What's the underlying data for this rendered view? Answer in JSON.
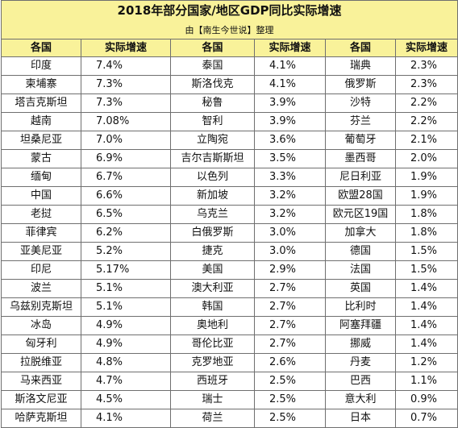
{
  "title": "2018年部分国家/地区GDP同比实际增速",
  "subtitle": "由【南生今世说】整理",
  "headers": [
    "各国",
    "实际增速",
    "各国",
    "实际增速",
    "各国",
    "实际增速"
  ],
  "colors": {
    "header_bg": "#f9f29a",
    "border": "#6f6f6f"
  },
  "rows": [
    [
      {
        "n": "印度",
        "v": "7.4%"
      },
      {
        "n": "泰国",
        "v": "4.1%"
      },
      {
        "n": "瑞典",
        "v": "2.3%"
      }
    ],
    [
      {
        "n": "柬埔寨",
        "v": "7.3%"
      },
      {
        "n": "斯洛伐克",
        "v": "4.1%"
      },
      {
        "n": "俄罗斯",
        "v": "2.3%"
      }
    ],
    [
      {
        "n": "塔吉克斯坦",
        "v": "7.3%"
      },
      {
        "n": "秘鲁",
        "v": "3.9%"
      },
      {
        "n": "沙特",
        "v": "2.2%"
      }
    ],
    [
      {
        "n": "越南",
        "v": "7.08%"
      },
      {
        "n": "智利",
        "v": "3.9%"
      },
      {
        "n": "芬兰",
        "v": "2.2%"
      }
    ],
    [
      {
        "n": "坦桑尼亚",
        "v": "7.0%"
      },
      {
        "n": "立陶宛",
        "v": "3.6%"
      },
      {
        "n": "葡萄牙",
        "v": "2.1%"
      }
    ],
    [
      {
        "n": "蒙古",
        "v": "6.9%"
      },
      {
        "n": "吉尔吉斯斯坦",
        "v": "3.5%"
      },
      {
        "n": "墨西哥",
        "v": "2.0%"
      }
    ],
    [
      {
        "n": "缅甸",
        "v": "6.7%"
      },
      {
        "n": "以色列",
        "v": "3.3%"
      },
      {
        "n": "尼日利亚",
        "v": "1.9%"
      }
    ],
    [
      {
        "n": "中国",
        "v": "6.6%"
      },
      {
        "n": "新加坡",
        "v": "3.2%"
      },
      {
        "n": "欧盟28国",
        "v": "1.9%"
      }
    ],
    [
      {
        "n": "老挝",
        "v": "6.5%"
      },
      {
        "n": "乌克兰",
        "v": "3.2%"
      },
      {
        "n": "欧元区19国",
        "v": "1.8%"
      }
    ],
    [
      {
        "n": "菲律宾",
        "v": "6.2%"
      },
      {
        "n": "白俄罗斯",
        "v": "3.0%"
      },
      {
        "n": "加拿大",
        "v": "1.8%"
      }
    ],
    [
      {
        "n": "亚美尼亚",
        "v": "5.2%"
      },
      {
        "n": "捷克",
        "v": "3.0%"
      },
      {
        "n": "德国",
        "v": "1.5%"
      }
    ],
    [
      {
        "n": "印尼",
        "v": "5.17%"
      },
      {
        "n": "美国",
        "v": "2.9%"
      },
      {
        "n": "法国",
        "v": "1.5%"
      }
    ],
    [
      {
        "n": "波兰",
        "v": "5.1%"
      },
      {
        "n": "澳大利亚",
        "v": "2.7%"
      },
      {
        "n": "英国",
        "v": "1.4%"
      }
    ],
    [
      {
        "n": "乌兹别克斯坦",
        "v": "5.1%"
      },
      {
        "n": "韩国",
        "v": "2.7%"
      },
      {
        "n": "比利时",
        "v": "1.4%"
      }
    ],
    [
      {
        "n": "冰岛",
        "v": "4.9%"
      },
      {
        "n": "奥地利",
        "v": "2.7%"
      },
      {
        "n": "阿塞拜疆",
        "v": "1.4%"
      }
    ],
    [
      {
        "n": "匈牙利",
        "v": "4.9%"
      },
      {
        "n": "哥伦比亚",
        "v": "2.7%"
      },
      {
        "n": "挪威",
        "v": "1.4%"
      }
    ],
    [
      {
        "n": "拉脱维亚",
        "v": "4.8%"
      },
      {
        "n": "克罗地亚",
        "v": "2.6%"
      },
      {
        "n": "丹麦",
        "v": "1.2%"
      }
    ],
    [
      {
        "n": "马来西亚",
        "v": "4.7%"
      },
      {
        "n": "西班牙",
        "v": "2.5%"
      },
      {
        "n": "巴西",
        "v": "1.1%"
      }
    ],
    [
      {
        "n": "斯洛文尼亚",
        "v": "4.5%"
      },
      {
        "n": "瑞士",
        "v": "2.5%"
      },
      {
        "n": "意大利",
        "v": "0.9%"
      }
    ],
    [
      {
        "n": "哈萨克斯坦",
        "v": "4.1%"
      },
      {
        "n": "荷兰",
        "v": "2.5%"
      },
      {
        "n": "日本",
        "v": "0.7%"
      }
    ]
  ]
}
